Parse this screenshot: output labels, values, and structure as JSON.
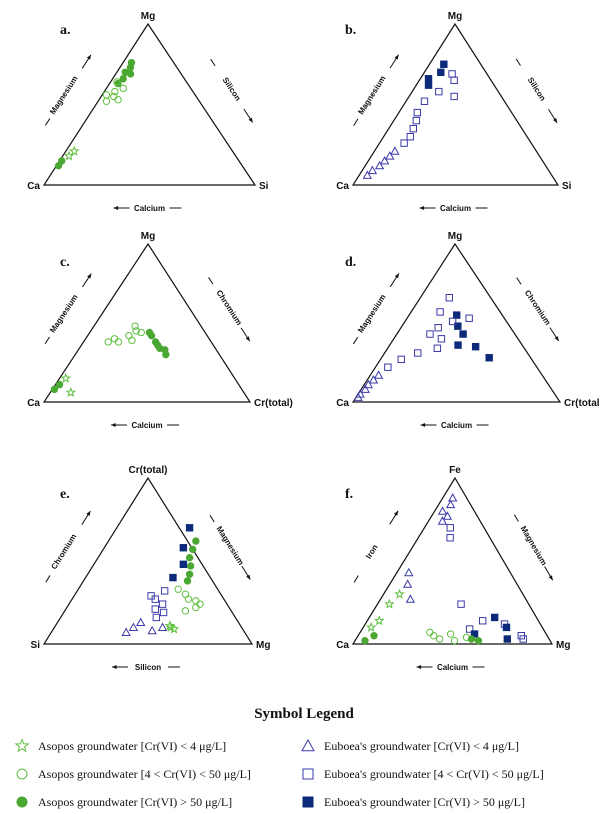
{
  "legend": {
    "title": "Symbol Legend",
    "items": [
      {
        "id": "asopos-low",
        "label": "Asopos groundwater [Cr(VI) < 4 μg/L]",
        "marker": "star",
        "color": "#5fbf3f",
        "filled": false
      },
      {
        "id": "asopos-mid",
        "label": "Asopos groundwater [4 < Cr(VI) < 50 μg/L]",
        "marker": "circle",
        "color": "#5fbf3f",
        "filled": false
      },
      {
        "id": "asopos-high",
        "label": "Asopos groundwater [Cr(VI) > 50 μg/L]",
        "marker": "circle",
        "color": "#4aa832",
        "filled": true
      },
      {
        "id": "euboea-low",
        "label": "Euboea's groundwater [Cr(VI) < 4 μg/L]",
        "marker": "triangle",
        "color": "#3a3aa8",
        "filled": false
      },
      {
        "id": "euboea-mid",
        "label": "Euboea's groundwater [4 < Cr(VI) < 50 μg/L]",
        "marker": "square",
        "color": "#3a3aa8",
        "filled": false
      },
      {
        "id": "euboea-high",
        "label": "Euboea's groundwater [Cr(VI) > 50 μg/L]",
        "marker": "square",
        "color": "#0d2a7a",
        "filled": true
      }
    ]
  },
  "chart_data": [
    {
      "type": "scatter",
      "subtype": "ternary",
      "panel": "a.",
      "vertices": {
        "top": "Mg",
        "left": "Ca",
        "right": "Si"
      },
      "axis_labels": {
        "left": "Magnesium",
        "right": "Silicon",
        "bottom": "Calcium"
      },
      "points": [
        {
          "s": "asopos-high",
          "top": 0.63,
          "right": 0.04
        },
        {
          "s": "asopos-high",
          "top": 0.66,
          "right": 0.05
        },
        {
          "s": "asopos-high",
          "top": 0.7,
          "right": 0.04
        },
        {
          "s": "asopos-high",
          "top": 0.73,
          "right": 0.05
        },
        {
          "s": "asopos-high",
          "top": 0.76,
          "right": 0.04
        },
        {
          "s": "asopos-high",
          "top": 0.69,
          "right": 0.07
        },
        {
          "s": "asopos-high",
          "top": 0.12,
          "right": 0.01
        },
        {
          "s": "asopos-high",
          "top": 0.15,
          "right": 0.01
        },
        {
          "s": "asopos-mid",
          "top": 0.58,
          "right": 0.05
        },
        {
          "s": "asopos-mid",
          "top": 0.55,
          "right": 0.06
        },
        {
          "s": "asopos-mid",
          "top": 0.6,
          "right": 0.08
        },
        {
          "s": "asopos-mid",
          "top": 0.52,
          "right": 0.04
        },
        {
          "s": "asopos-mid",
          "top": 0.56,
          "right": 0.02
        },
        {
          "s": "asopos-mid",
          "top": 0.64,
          "right": 0.03
        },
        {
          "s": "asopos-mid",
          "top": 0.53,
          "right": 0.09
        },
        {
          "s": "asopos-low",
          "top": 0.18,
          "right": 0.03
        },
        {
          "s": "asopos-low",
          "top": 0.21,
          "right": 0.04
        }
      ]
    },
    {
      "type": "scatter",
      "subtype": "ternary",
      "panel": "b.",
      "vertices": {
        "top": "Mg",
        "left": "Ca",
        "right": "Si"
      },
      "axis_labels": {
        "left": "Magnesium",
        "right": "Silicon",
        "bottom": "Calcium"
      },
      "points": [
        {
          "s": "euboea-high",
          "top": 0.75,
          "right": 0.07
        },
        {
          "s": "euboea-high",
          "top": 0.7,
          "right": 0.08
        },
        {
          "s": "euboea-high",
          "top": 0.66,
          "right": 0.04
        },
        {
          "s": "euboea-high",
          "top": 0.62,
          "right": 0.06
        },
        {
          "s": "euboea-mid",
          "top": 0.69,
          "right": 0.14
        },
        {
          "s": "euboea-mid",
          "top": 0.65,
          "right": 0.17
        },
        {
          "s": "euboea-mid",
          "top": 0.58,
          "right": 0.13
        },
        {
          "s": "euboea-mid",
          "top": 0.52,
          "right": 0.09
        },
        {
          "s": "euboea-mid",
          "top": 0.45,
          "right": 0.09
        },
        {
          "s": "euboea-mid",
          "top": 0.4,
          "right": 0.11
        },
        {
          "s": "euboea-mid",
          "top": 0.35,
          "right": 0.12
        },
        {
          "s": "euboea-mid",
          "top": 0.3,
          "right": 0.13
        },
        {
          "s": "euboea-mid",
          "top": 0.26,
          "right": 0.12
        },
        {
          "s": "euboea-mid",
          "top": 0.55,
          "right": 0.22
        },
        {
          "s": "euboea-low",
          "top": 0.18,
          "right": 0.09
        },
        {
          "s": "euboea-low",
          "top": 0.15,
          "right": 0.08
        },
        {
          "s": "euboea-low",
          "top": 0.12,
          "right": 0.07
        },
        {
          "s": "euboea-low",
          "top": 0.09,
          "right": 0.05
        },
        {
          "s": "euboea-low",
          "top": 0.06,
          "right": 0.04
        },
        {
          "s": "euboea-low",
          "top": 0.21,
          "right": 0.1
        }
      ]
    },
    {
      "type": "scatter",
      "subtype": "ternary",
      "panel": "c.",
      "vertices": {
        "top": "Mg",
        "left": "Ca",
        "right": "Cr(total)"
      },
      "axis_labels": {
        "left": "Magnesium",
        "right": "Chromium",
        "bottom": "Calcium"
      },
      "points": [
        {
          "s": "asopos-high",
          "top": 0.44,
          "right": 0.29
        },
        {
          "s": "asopos-high",
          "top": 0.42,
          "right": 0.31
        },
        {
          "s": "asopos-high",
          "top": 0.38,
          "right": 0.35
        },
        {
          "s": "asopos-high",
          "top": 0.36,
          "right": 0.37
        },
        {
          "s": "asopos-high",
          "top": 0.34,
          "right": 0.39
        },
        {
          "s": "asopos-high",
          "top": 0.33,
          "right": 0.42
        },
        {
          "s": "asopos-high",
          "top": 0.3,
          "right": 0.44
        },
        {
          "s": "asopos-high",
          "top": 0.08,
          "right": 0.01
        },
        {
          "s": "asopos-high",
          "top": 0.11,
          "right": 0.02
        },
        {
          "s": "asopos-mid",
          "top": 0.48,
          "right": 0.2
        },
        {
          "s": "asopos-mid",
          "top": 0.45,
          "right": 0.22
        },
        {
          "s": "asopos-mid",
          "top": 0.42,
          "right": 0.2
        },
        {
          "s": "asopos-mid",
          "top": 0.4,
          "right": 0.14
        },
        {
          "s": "asopos-mid",
          "top": 0.38,
          "right": 0.12
        },
        {
          "s": "asopos-mid",
          "top": 0.38,
          "right": 0.17
        },
        {
          "s": "asopos-mid",
          "top": 0.44,
          "right": 0.25
        },
        {
          "s": "asopos-mid",
          "top": 0.39,
          "right": 0.23
        },
        {
          "s": "asopos-low",
          "top": 0.15,
          "right": 0.03
        },
        {
          "s": "asopos-low",
          "top": 0.06,
          "right": 0.1
        }
      ]
    },
    {
      "type": "scatter",
      "subtype": "ternary",
      "panel": "d.",
      "vertices": {
        "top": "Mg",
        "left": "Ca",
        "right": "Cr(total"
      },
      "axis_labels": {
        "left": "Magnesium",
        "right": "Chromium",
        "bottom": "Calcium"
      },
      "points": [
        {
          "s": "euboea-high",
          "top": 0.55,
          "right": 0.23
        },
        {
          "s": "euboea-high",
          "top": 0.48,
          "right": 0.27
        },
        {
          "s": "euboea-high",
          "top": 0.43,
          "right": 0.32
        },
        {
          "s": "euboea-high",
          "top": 0.36,
          "right": 0.33
        },
        {
          "s": "euboea-high",
          "top": 0.35,
          "right": 0.42
        },
        {
          "s": "euboea-high",
          "top": 0.28,
          "right": 0.52
        },
        {
          "s": "euboea-mid",
          "top": 0.66,
          "right": 0.14
        },
        {
          "s": "euboea-mid",
          "top": 0.57,
          "right": 0.14
        },
        {
          "s": "euboea-mid",
          "top": 0.51,
          "right": 0.23
        },
        {
          "s": "euboea-mid",
          "top": 0.47,
          "right": 0.18
        },
        {
          "s": "euboea-mid",
          "top": 0.43,
          "right": 0.16
        },
        {
          "s": "euboea-mid",
          "top": 0.4,
          "right": 0.23
        },
        {
          "s": "euboea-mid",
          "top": 0.34,
          "right": 0.24
        },
        {
          "s": "euboea-mid",
          "top": 0.31,
          "right": 0.16
        },
        {
          "s": "euboea-mid",
          "top": 0.27,
          "right": 0.1
        },
        {
          "s": "euboea-mid",
          "top": 0.22,
          "right": 0.06
        },
        {
          "s": "euboea-mid",
          "top": 0.53,
          "right": 0.3
        },
        {
          "s": "euboea-low",
          "top": 0.17,
          "right": 0.04
        },
        {
          "s": "euboea-low",
          "top": 0.14,
          "right": 0.03
        },
        {
          "s": "euboea-low",
          "top": 0.11,
          "right": 0.02
        },
        {
          "s": "euboea-low",
          "top": 0.08,
          "right": 0.02
        },
        {
          "s": "euboea-low",
          "top": 0.05,
          "right": 0.01
        },
        {
          "s": "euboea-low",
          "top": 0.03,
          "right": 0.01
        }
      ]
    },
    {
      "type": "scatter",
      "subtype": "ternary",
      "panel": "e.",
      "vertices": {
        "top": "Cr(total)",
        "left": "Si",
        "right": "Mg"
      },
      "axis_labels": {
        "left": "Chromium",
        "right": "Magnesium",
        "bottom": "Silicon"
      },
      "points": [
        {
          "s": "asopos-high",
          "top": 0.62,
          "right": 0.42
        },
        {
          "s": "asopos-high",
          "top": 0.57,
          "right": 0.43
        },
        {
          "s": "asopos-high",
          "top": 0.52,
          "right": 0.44
        },
        {
          "s": "asopos-high",
          "top": 0.47,
          "right": 0.47
        },
        {
          "s": "asopos-high",
          "top": 0.42,
          "right": 0.49
        },
        {
          "s": "asopos-high",
          "top": 0.38,
          "right": 0.5
        },
        {
          "s": "asopos-mid",
          "top": 0.26,
          "right": 0.6
        },
        {
          "s": "asopos-mid",
          "top": 0.24,
          "right": 0.63
        },
        {
          "s": "asopos-mid",
          "top": 0.22,
          "right": 0.62
        },
        {
          "s": "asopos-mid",
          "top": 0.3,
          "right": 0.53
        },
        {
          "s": "asopos-mid",
          "top": 0.27,
          "right": 0.56
        },
        {
          "s": "asopos-mid",
          "top": 0.2,
          "right": 0.58
        },
        {
          "s": "asopos-mid",
          "top": 0.33,
          "right": 0.48
        },
        {
          "s": "asopos-low",
          "top": 0.1,
          "right": 0.56
        },
        {
          "s": "asopos-low",
          "top": 0.09,
          "right": 0.58
        },
        {
          "s": "asopos-low",
          "top": 0.11,
          "right": 0.55
        },
        {
          "s": "euboea-high",
          "top": 0.7,
          "right": 0.35
        },
        {
          "s": "euboea-high",
          "top": 0.58,
          "right": 0.38
        },
        {
          "s": "euboea-high",
          "top": 0.48,
          "right": 0.43
        },
        {
          "s": "euboea-high",
          "top": 0.4,
          "right": 0.42
        },
        {
          "s": "euboea-mid",
          "top": 0.32,
          "right": 0.42
        },
        {
          "s": "euboea-mid",
          "top": 0.29,
          "right": 0.37
        },
        {
          "s": "euboea-mid",
          "top": 0.27,
          "right": 0.4
        },
        {
          "s": "euboea-mid",
          "top": 0.24,
          "right": 0.45
        },
        {
          "s": "euboea-mid",
          "top": 0.21,
          "right": 0.43
        },
        {
          "s": "euboea-mid",
          "top": 0.19,
          "right": 0.48
        },
        {
          "s": "euboea-mid",
          "top": 0.16,
          "right": 0.46
        },
        {
          "s": "euboea-low",
          "top": 0.13,
          "right": 0.4
        },
        {
          "s": "euboea-low",
          "top": 0.1,
          "right": 0.38
        },
        {
          "s": "euboea-low",
          "top": 0.07,
          "right": 0.36
        },
        {
          "s": "euboea-low",
          "top": 0.08,
          "right": 0.48
        },
        {
          "s": "euboea-low",
          "top": 0.1,
          "right": 0.52
        }
      ]
    },
    {
      "type": "scatter",
      "subtype": "ternary",
      "panel": "f.",
      "vertices": {
        "top": "Fe",
        "left": "Ca",
        "right": "Mg"
      },
      "axis_labels": {
        "left": "Iron",
        "right": "Magnesium",
        "bottom": "Calcium"
      },
      "points": [
        {
          "s": "euboea-low",
          "top": 0.88,
          "right": 0.05
        },
        {
          "s": "euboea-low",
          "top": 0.84,
          "right": 0.06
        },
        {
          "s": "euboea-low",
          "top": 0.8,
          "right": 0.04
        },
        {
          "s": "euboea-low",
          "top": 0.77,
          "right": 0.08
        },
        {
          "s": "euboea-low",
          "top": 0.74,
          "right": 0.07
        },
        {
          "s": "euboea-low",
          "top": 0.43,
          "right": 0.06
        },
        {
          "s": "euboea-low",
          "top": 0.36,
          "right": 0.09
        },
        {
          "s": "euboea-low",
          "top": 0.27,
          "right": 0.15
        },
        {
          "s": "euboea-mid",
          "top": 0.7,
          "right": 0.13
        },
        {
          "s": "euboea-mid",
          "top": 0.64,
          "right": 0.16
        },
        {
          "s": "euboea-mid",
          "top": 0.24,
          "right": 0.42
        },
        {
          "s": "euboea-mid",
          "top": 0.14,
          "right": 0.58
        },
        {
          "s": "euboea-mid",
          "top": 0.12,
          "right": 0.7
        },
        {
          "s": "euboea-mid",
          "top": 0.05,
          "right": 0.82
        },
        {
          "s": "euboea-mid",
          "top": 0.03,
          "right": 0.84
        },
        {
          "s": "euboea-mid",
          "top": 0.09,
          "right": 0.54
        },
        {
          "s": "euboea-high",
          "top": 0.16,
          "right": 0.63
        },
        {
          "s": "euboea-high",
          "top": 0.1,
          "right": 0.72
        },
        {
          "s": "euboea-high",
          "top": 0.03,
          "right": 0.76
        },
        {
          "s": "euboea-high",
          "top": 0.06,
          "right": 0.58
        },
        {
          "s": "asopos-low",
          "top": 0.3,
          "right": 0.08
        },
        {
          "s": "asopos-low",
          "top": 0.24,
          "right": 0.06
        },
        {
          "s": "asopos-low",
          "top": 0.14,
          "right": 0.06
        },
        {
          "s": "asopos-low",
          "top": 0.1,
          "right": 0.04
        },
        {
          "s": "asopos-mid",
          "top": 0.05,
          "right": 0.38
        },
        {
          "s": "asopos-mid",
          "top": 0.03,
          "right": 0.42
        },
        {
          "s": "asopos-mid",
          "top": 0.06,
          "right": 0.46
        },
        {
          "s": "asopos-mid",
          "top": 0.02,
          "right": 0.5
        },
        {
          "s": "asopos-mid",
          "top": 0.04,
          "right": 0.55
        },
        {
          "s": "asopos-mid",
          "top": 0.07,
          "right": 0.35
        },
        {
          "s": "asopos-high",
          "top": 0.03,
          "right": 0.58
        },
        {
          "s": "asopos-high",
          "top": 0.02,
          "right": 0.62
        },
        {
          "s": "asopos-high",
          "top": 0.02,
          "right": 0.05
        },
        {
          "s": "asopos-high",
          "top": 0.05,
          "right": 0.08
        }
      ]
    }
  ]
}
